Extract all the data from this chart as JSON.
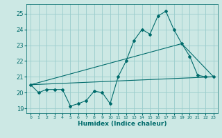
{
  "xlabel": "Humidex (Indice chaleur)",
  "bg_color": "#cce8e4",
  "line_color": "#006b6b",
  "grid_color": "#99cccc",
  "xlim": [
    -0.5,
    23.5
  ],
  "ylim": [
    18.7,
    25.6
  ],
  "yticks": [
    19,
    20,
    21,
    22,
    23,
    24,
    25
  ],
  "xticks": [
    0,
    1,
    2,
    3,
    4,
    5,
    6,
    7,
    8,
    9,
    10,
    11,
    12,
    13,
    14,
    15,
    16,
    17,
    18,
    19,
    20,
    21,
    22,
    23
  ],
  "main_x": [
    0,
    1,
    2,
    3,
    4,
    5,
    6,
    7,
    8,
    9,
    10,
    11,
    12,
    13,
    14,
    15,
    16,
    17,
    18,
    19,
    20,
    21,
    22,
    23
  ],
  "main_y": [
    20.5,
    20.0,
    20.2,
    20.2,
    20.2,
    19.15,
    19.3,
    19.5,
    20.1,
    20.0,
    19.3,
    21.0,
    22.0,
    23.3,
    24.0,
    23.7,
    24.85,
    25.15,
    24.0,
    23.1,
    22.3,
    21.1,
    21.0,
    21.0
  ],
  "line2_x": [
    0,
    23
  ],
  "line2_y": [
    20.5,
    21.0
  ],
  "line3_x": [
    0,
    19,
    23
  ],
  "line3_y": [
    20.5,
    23.1,
    21.0
  ]
}
